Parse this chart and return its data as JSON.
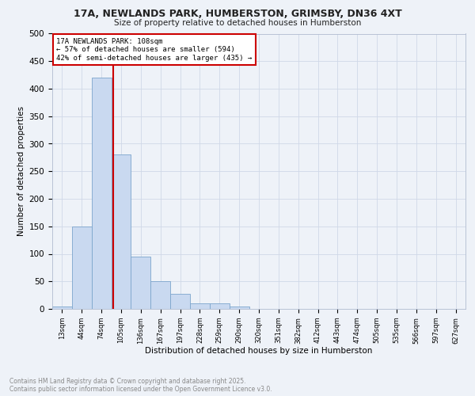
{
  "title1": "17A, NEWLANDS PARK, HUMBERSTON, GRIMSBY, DN36 4XT",
  "title2": "Size of property relative to detached houses in Humberston",
  "xlabel": "Distribution of detached houses by size in Humberston",
  "ylabel": "Number of detached properties",
  "bin_labels": [
    "13sqm",
    "44sqm",
    "74sqm",
    "105sqm",
    "136sqm",
    "167sqm",
    "197sqm",
    "228sqm",
    "259sqm",
    "290sqm",
    "320sqm",
    "351sqm",
    "382sqm",
    "412sqm",
    "443sqm",
    "474sqm",
    "505sqm",
    "535sqm",
    "566sqm",
    "597sqm",
    "627sqm"
  ],
  "bar_values": [
    5,
    150,
    420,
    280,
    95,
    50,
    28,
    10,
    10,
    5,
    0,
    0,
    0,
    0,
    0,
    0,
    0,
    0,
    0,
    0,
    0
  ],
  "bar_color": "#c9d9f0",
  "bar_edge_color": "#7ca5cc",
  "grid_color": "#d0d8e8",
  "property_line_label": "17A NEWLANDS PARK: 108sqm",
  "annotation_line1": "← 57% of detached houses are smaller (594)",
  "annotation_line2": "42% of semi-detached houses are larger (435) →",
  "annotation_box_color": "#ffffff",
  "annotation_box_edge": "#cc0000",
  "vline_color": "#cc0000",
  "footer_line1": "Contains HM Land Registry data © Crown copyright and database right 2025.",
  "footer_line2": "Contains public sector information licensed under the Open Government Licence v3.0.",
  "footer_color": "#888888",
  "bg_color": "#eef2f8",
  "ylim": [
    0,
    500
  ],
  "vline_x": 2.597,
  "yticks": [
    0,
    50,
    100,
    150,
    200,
    250,
    300,
    350,
    400,
    450,
    500
  ]
}
